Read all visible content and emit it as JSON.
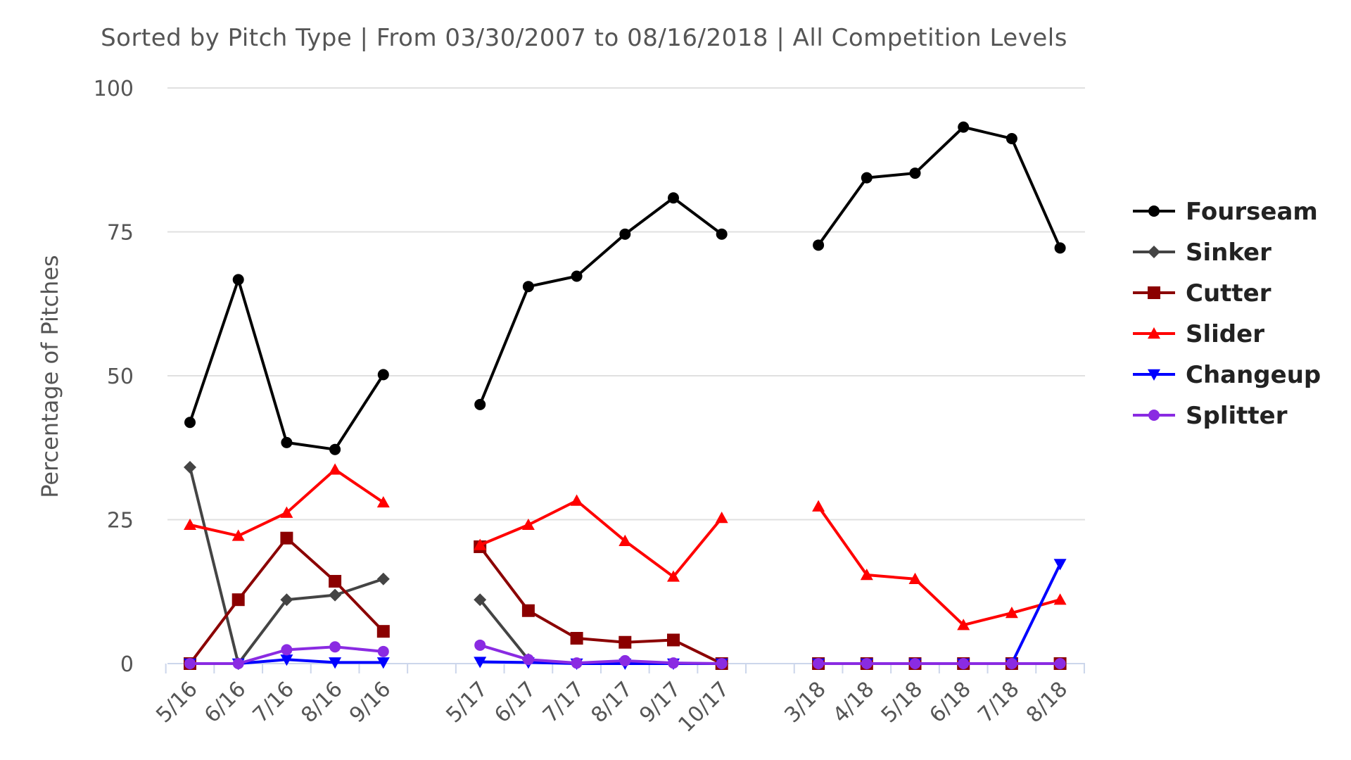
{
  "chart_data": {
    "type": "line",
    "subtitle": "Sorted by Pitch Type | From 03/30/2007 to 08/16/2018 | All Competition Levels",
    "ylabel": "Percentage of Pitches",
    "xlabel": "",
    "ylim": [
      0,
      100
    ],
    "yticks": [
      0,
      25,
      50,
      75,
      100
    ],
    "grid": true,
    "legend_position": "right",
    "groups": [
      [
        "5/16",
        "6/16",
        "7/16",
        "8/16",
        "9/16"
      ],
      [
        "5/17",
        "6/17",
        "7/17",
        "8/17",
        "9/17",
        "10/17"
      ],
      [
        "3/18",
        "4/18",
        "5/18",
        "6/18",
        "7/18",
        "8/18"
      ]
    ],
    "series": [
      {
        "name": "Fourseam",
        "color": "#000000",
        "marker": "circle",
        "values": [
          [
            41.9,
            66.7,
            38.4,
            37.2,
            50.2
          ],
          [
            45.0,
            65.5,
            67.3,
            74.6,
            80.9,
            74.6
          ],
          [
            72.7,
            84.4,
            85.2,
            93.2,
            91.2,
            72.2
          ]
        ]
      },
      {
        "name": "Sinker",
        "color": "#444444",
        "marker": "diamond",
        "values": [
          [
            34.1,
            0.0,
            11.1,
            11.9,
            14.7
          ],
          [
            11.1,
            0.7,
            null,
            null,
            null,
            null
          ],
          [
            null,
            null,
            null,
            null,
            null,
            null
          ]
        ]
      },
      {
        "name": "Cutter",
        "color": "#8b0000",
        "marker": "square",
        "values": [
          [
            0.0,
            11.1,
            21.8,
            14.3,
            5.6
          ],
          [
            20.3,
            9.2,
            4.4,
            3.7,
            4.1,
            0.0
          ],
          [
            0.0,
            0.0,
            0.0,
            0.0,
            0.0,
            0.0
          ]
        ]
      },
      {
        "name": "Slider",
        "color": "#ff0000",
        "marker": "triangle",
        "values": [
          [
            24.1,
            22.2,
            26.2,
            33.7,
            28.0
          ],
          [
            20.6,
            24.1,
            28.3,
            21.3,
            15.1,
            25.3
          ],
          [
            27.3,
            15.4,
            14.7,
            6.7,
            8.8,
            11.1
          ]
        ]
      },
      {
        "name": "Changeup",
        "color": "#0000ff",
        "marker": "triangle-down",
        "values": [
          [
            0.0,
            0.0,
            0.7,
            0.2,
            0.2
          ],
          [
            0.3,
            0.2,
            0.0,
            0.0,
            0.0,
            0.0
          ],
          [
            0.0,
            0.0,
            0.0,
            0.0,
            0.0,
            17.3
          ]
        ]
      },
      {
        "name": "Splitter",
        "color": "#8a2be2",
        "marker": "circle",
        "values": [
          [
            0.0,
            0.0,
            2.4,
            2.9,
            2.1
          ],
          [
            3.2,
            0.7,
            0.1,
            0.5,
            0.1,
            0.0
          ],
          [
            0.0,
            0.0,
            0.0,
            0.0,
            0.0,
            0.0
          ]
        ]
      }
    ]
  }
}
